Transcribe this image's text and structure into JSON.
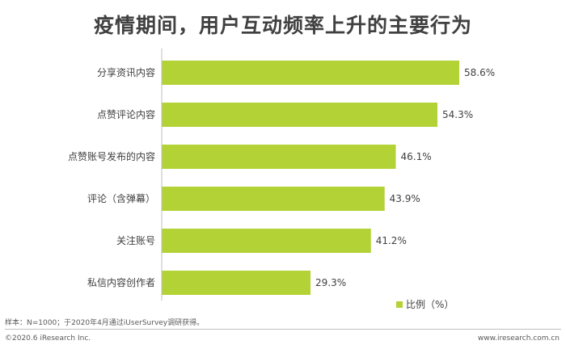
{
  "chart_data": {
    "type": "bar",
    "orientation": "horizontal",
    "title": "疫情期间，用户互动频率上升的主要行为",
    "categories": [
      "分享资讯内容",
      "点赞评论内容",
      "点赞账号发布的内容",
      "评论（含弹幕）",
      "关注账号",
      "私信内容创作者"
    ],
    "series": [
      {
        "name": "比例（%）",
        "values": [
          58.6,
          54.3,
          46.1,
          43.9,
          41.2,
          29.3
        ]
      }
    ],
    "value_labels": [
      "58.6%",
      "54.3%",
      "46.1%",
      "43.9%",
      "41.2%",
      "29.3%"
    ],
    "xlim": [
      0,
      70
    ],
    "grid": false,
    "legend_position": "bottom-right",
    "bar_color": "#b2d235"
  },
  "footer": {
    "note": "样本：N=1000；于2020年4月通过iUserSurvey调研获得。",
    "copyright": "©2020.6 iResearch Inc.",
    "website": "www.iresearch.com.cn"
  }
}
